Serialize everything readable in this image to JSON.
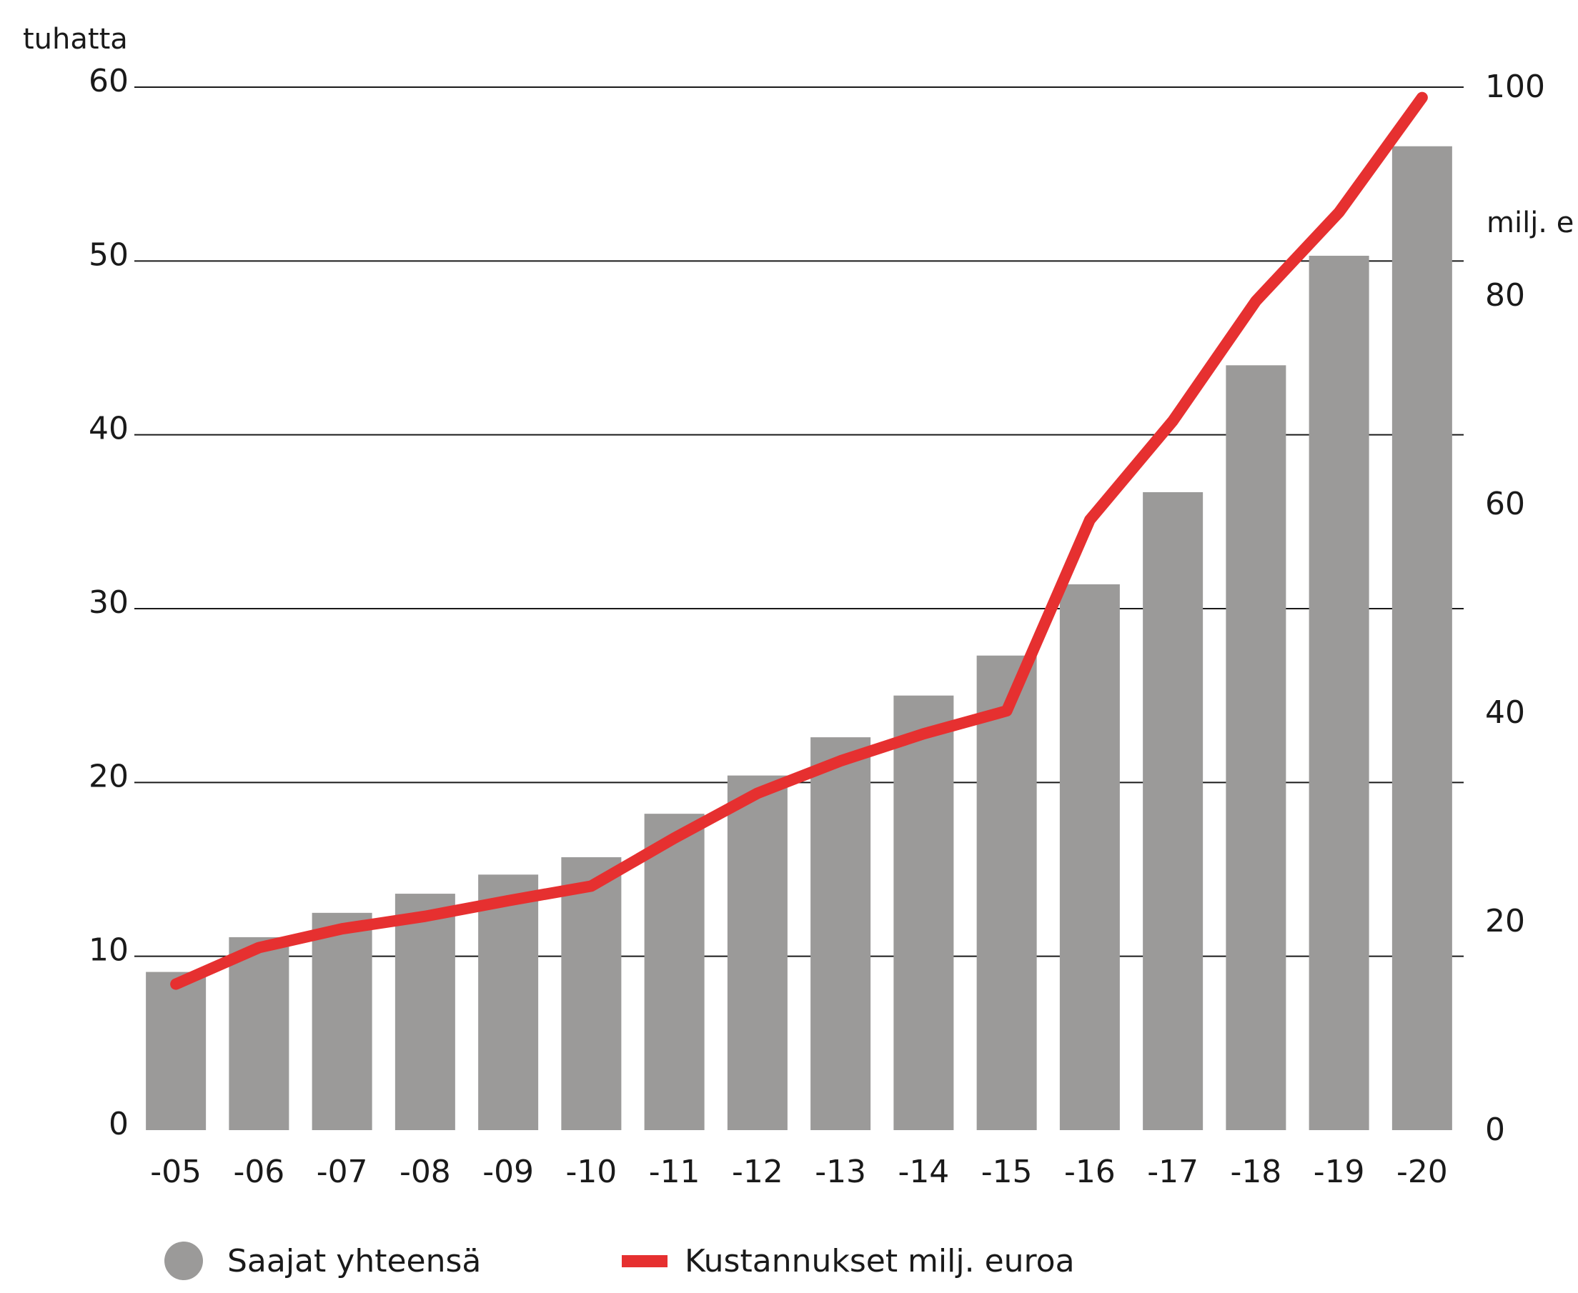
{
  "chart_data": {
    "type": "bar",
    "categories": [
      "-05",
      "-06",
      "-07",
      "-08",
      "-09",
      "-10",
      "-11",
      "-12",
      "-13",
      "-14",
      "-15",
      "-16",
      "-17",
      "-18",
      "-19",
      "-20"
    ],
    "series": [
      {
        "name": "Saajat yhteensä",
        "type": "bar",
        "axis": "left",
        "color": "#9b9a99",
        "values": [
          9.1,
          11.1,
          12.5,
          13.6,
          14.7,
          15.7,
          18.2,
          20.4,
          22.6,
          25.0,
          27.3,
          31.4,
          36.7,
          44.0,
          50.3,
          56.6
        ]
      },
      {
        "name": "Kustannukset milj. euroa",
        "type": "line",
        "axis": "right",
        "color": "#e63030",
        "values": [
          14,
          17.5,
          19.3,
          20.5,
          22,
          23.4,
          28,
          32.3,
          35.4,
          38,
          40.2,
          58.5,
          68,
          79.5,
          88,
          99
        ]
      }
    ],
    "y_left": {
      "label": "tuhatta",
      "ylim": [
        0,
        60
      ],
      "ticks": [
        0,
        10,
        20,
        30,
        40,
        50,
        60
      ]
    },
    "y_right": {
      "label": "milj. e",
      "ylim": [
        0,
        100
      ],
      "ticks": [
        0,
        20,
        40,
        60,
        80,
        100
      ]
    },
    "grid": true,
    "legend_position": "bottom"
  }
}
